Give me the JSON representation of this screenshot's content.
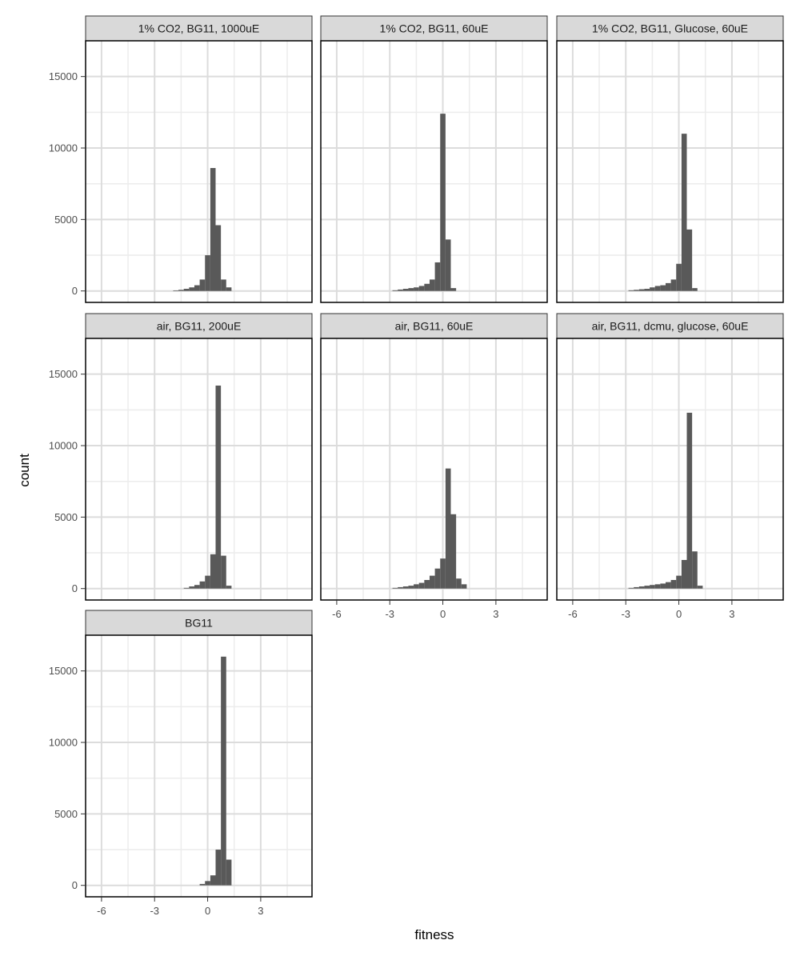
{
  "chart_data": {
    "type": "bar",
    "subtype": "faceted-histogram",
    "xlabel": "fitness",
    "ylabel": "count",
    "xlim": [
      -6.9,
      5.9
    ],
    "ylim": [
      -800,
      17500
    ],
    "x_ticks": [
      -6,
      -3,
      0,
      3
    ],
    "y_ticks": [
      0,
      5000,
      10000,
      15000
    ],
    "grid": true,
    "facet_layout": {
      "ncol": 3,
      "nrow": 3
    },
    "colors": {
      "bar": "#595959",
      "grid_major": "#dcdcdc",
      "grid_minor": "#ececec",
      "strip_fill": "#d9d9d9",
      "panel_border": "#000000"
    },
    "bin_centers": [
      -2.7,
      -2.4,
      -2.1,
      -1.8,
      -1.5,
      -1.2,
      -0.9,
      -0.6,
      -0.3,
      0.0,
      0.3,
      0.6,
      0.9,
      1.2
    ],
    "bin_width": 0.3,
    "panels": [
      {
        "title": "1% CO2, BG11, 1000uE",
        "show_x_axis": false,
        "show_y_axis": true,
        "values": [
          0,
          0,
          0,
          40,
          80,
          150,
          250,
          400,
          800,
          2500,
          8600,
          4600,
          800,
          250
        ]
      },
      {
        "title": "1% CO2, BG11, 60uE",
        "show_x_axis": false,
        "show_y_axis": false,
        "values": [
          50,
          100,
          150,
          200,
          250,
          350,
          500,
          800,
          2000,
          12400,
          3600,
          200,
          0,
          0
        ]
      },
      {
        "title": "1% CO2, BG11, Glucose, 60uE",
        "show_x_axis": false,
        "show_y_axis": false,
        "values": [
          50,
          80,
          120,
          150,
          250,
          350,
          400,
          550,
          800,
          1900,
          11000,
          4300,
          200,
          0
        ]
      },
      {
        "title": "air, BG11, 200uE",
        "show_x_axis": false,
        "show_y_axis": true,
        "values": [
          0,
          0,
          0,
          0,
          0,
          50,
          150,
          250,
          500,
          900,
          2400,
          14200,
          2300,
          200
        ]
      },
      {
        "title": "air, BG11, 60uE",
        "show_x_axis": true,
        "show_y_axis": false,
        "values": [
          50,
          100,
          150,
          200,
          300,
          400,
          600,
          900,
          1400,
          2100,
          8400,
          5200,
          700,
          300
        ]
      },
      {
        "title": "air, BG11, dcmu, glucose, 60uE",
        "show_x_axis": true,
        "show_y_axis": false,
        "values": [
          50,
          100,
          150,
          200,
          250,
          300,
          350,
          450,
          600,
          900,
          2000,
          12300,
          2600,
          200
        ]
      },
      {
        "title": "BG11",
        "show_x_axis": true,
        "show_y_axis": true,
        "values": [
          0,
          0,
          0,
          0,
          0,
          0,
          0,
          0,
          100,
          300,
          700,
          2500,
          16000,
          1800
        ]
      }
    ],
    "panel_bins": [
      [
        -1.65,
        -1.35,
        -1.05,
        -0.75,
        -0.45,
        -0.15,
        0.15,
        0.45,
        0.75,
        1.05,
        1.35,
        1.65,
        1.95,
        2.25
      ],
      null,
      null,
      null,
      null,
      null,
      null
    ]
  }
}
